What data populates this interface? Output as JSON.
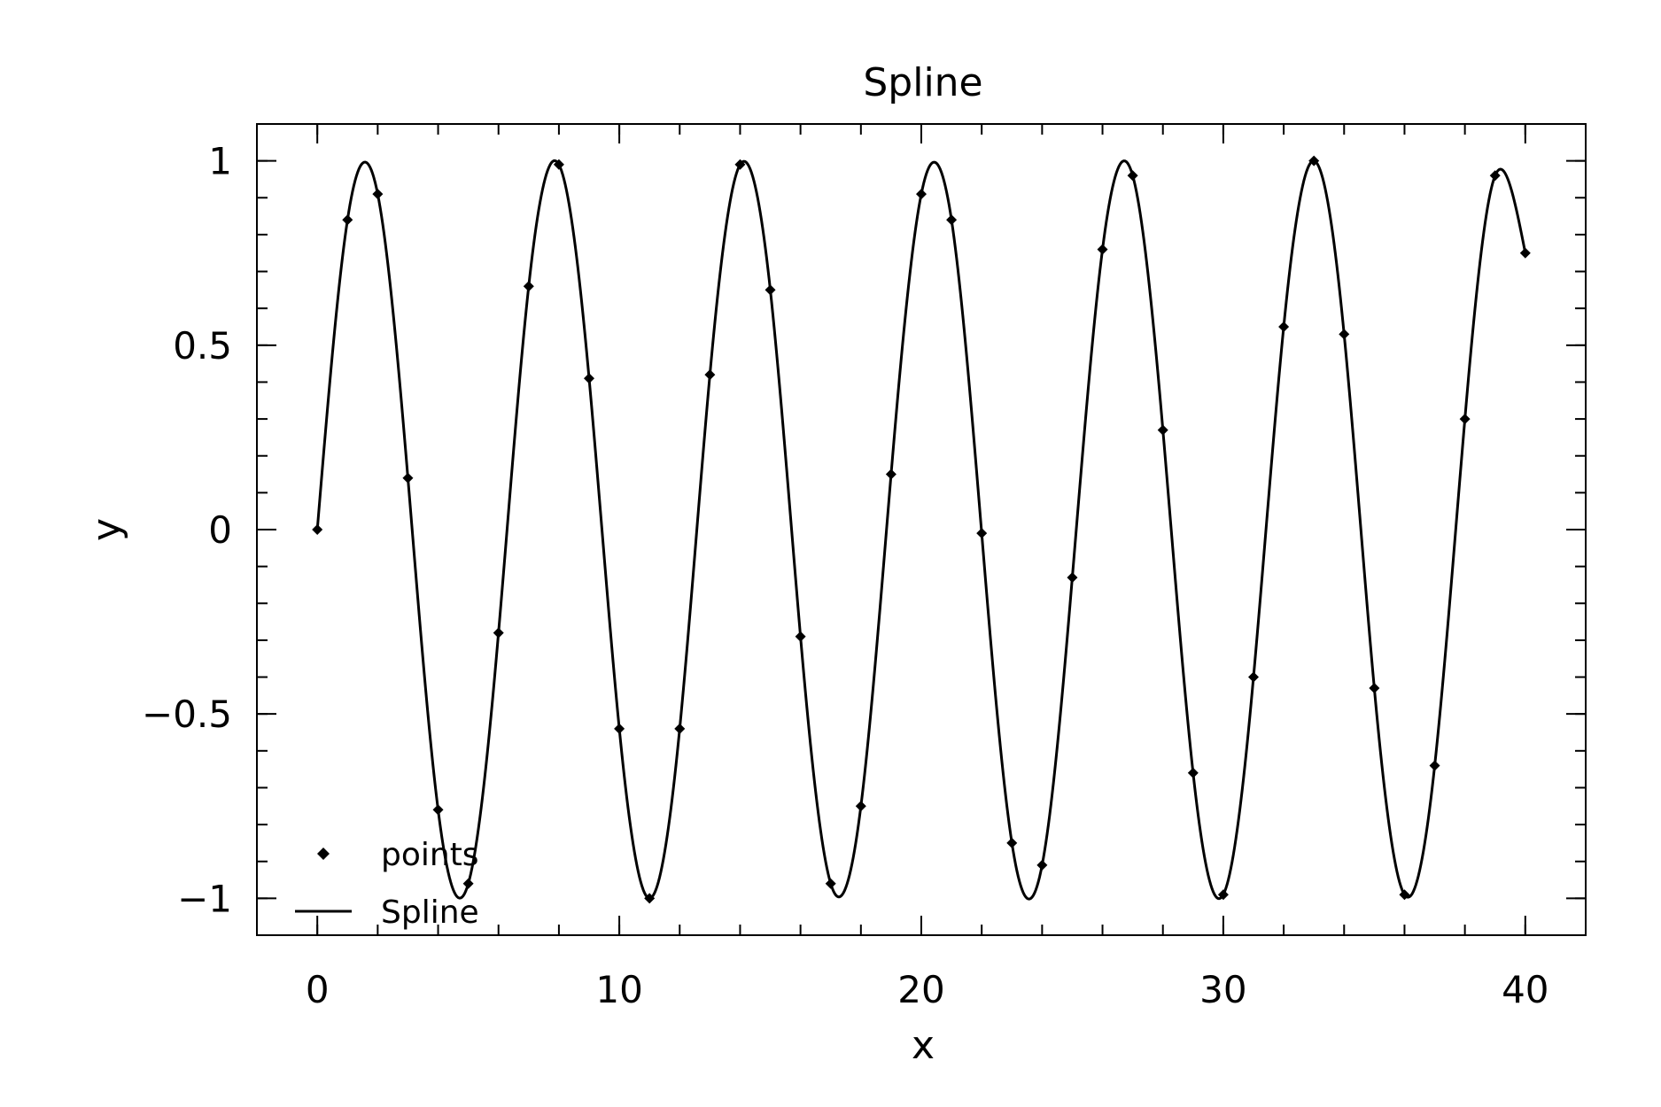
{
  "chart_data": {
    "type": "line",
    "title": "Spline",
    "xlabel": "x",
    "ylabel": "y",
    "xlim": [
      -2,
      42
    ],
    "ylim": [
      -1.1,
      1.1
    ],
    "x_ticks": [
      {
        "value": 0,
        "label": "0"
      },
      {
        "value": 10,
        "label": "10"
      },
      {
        "value": 20,
        "label": "20"
      },
      {
        "value": 30,
        "label": "30"
      },
      {
        "value": 40,
        "label": "40"
      }
    ],
    "y_ticks": [
      {
        "value": 1,
        "label": "1"
      },
      {
        "value": 0.5,
        "label": "0.5"
      },
      {
        "value": 0,
        "label": "0"
      },
      {
        "value": -0.5,
        "label": "−0.5"
      },
      {
        "value": -1,
        "label": "−1"
      }
    ],
    "x_minor_step": 2,
    "y_minor_step": 0.1,
    "grid": false,
    "legend_position": "bottom-left",
    "series": [
      {
        "name": "points",
        "kind": "scatter",
        "marker": "diamond",
        "color": "#000000",
        "x": [
          0,
          1,
          2,
          3,
          4,
          5,
          6,
          7,
          8,
          9,
          10,
          11,
          12,
          13,
          14,
          15,
          16,
          17,
          18,
          19,
          20,
          21,
          22,
          23,
          24,
          25,
          26,
          27,
          28,
          29,
          30,
          31,
          32,
          33,
          34,
          35,
          36,
          37,
          38,
          39,
          40
        ],
        "y": [
          0,
          0.84,
          0.91,
          0.14,
          -0.76,
          -0.96,
          -0.28,
          0.66,
          0.99,
          0.41,
          -0.54,
          -1.0,
          -0.54,
          0.42,
          0.99,
          0.65,
          -0.29,
          -0.96,
          -0.75,
          0.15,
          0.91,
          0.84,
          -0.01,
          -0.85,
          -0.91,
          -0.13,
          0.76,
          0.96,
          0.27,
          -0.66,
          -0.99,
          -0.4,
          0.55,
          1.0,
          0.53,
          -0.43,
          -0.99,
          -0.64,
          0.3,
          0.96,
          0.75
        ]
      },
      {
        "name": "Spline",
        "kind": "line",
        "color": "#000000",
        "interpolation": "spline-through-points"
      }
    ]
  }
}
